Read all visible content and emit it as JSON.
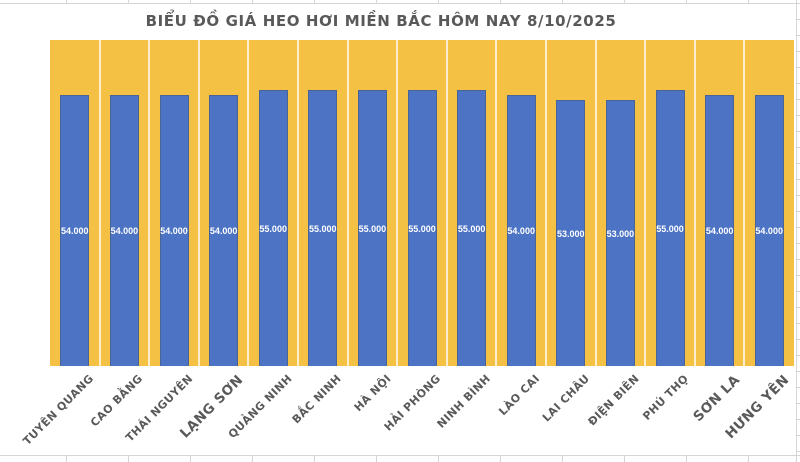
{
  "title": "BIỂU ĐỒ GIÁ HEO HƠI MIỀN BẮC HÔM NAY 8/10/2025",
  "colors": {
    "plot_background": "#F4C145",
    "bar": "#4D74C4",
    "title_text": "#595959",
    "axis_label_text": "#595959",
    "bar_value_text": "#FFFFFF",
    "column_separator": "#FBEBC0",
    "spreadsheet_gridline": "#D6D6D6"
  },
  "chart_data": {
    "type": "bar",
    "title": "BIỂU ĐỒ GIÁ HEO HƠI MIỀN BẮC HÔM NAY 8/10/2025",
    "categories": [
      "TUYÊN QUANG",
      "CAO BẰNG",
      "THÁI NGUYÊN",
      "LẠNG SƠN",
      "QUẢNG NINH",
      "BẮC NINH",
      "HÀ NỘI",
      "HẢI PHÒNG",
      "NINH BÌNH",
      "LÀO CAI",
      "LAI CHÂU",
      "ĐIỆN BIÊN",
      "PHÚ THỌ",
      "SƠN LA",
      "HƯNG YÊN"
    ],
    "values": [
      54000,
      54000,
      54000,
      54000,
      55000,
      55000,
      55000,
      55000,
      55000,
      54000,
      53000,
      53000,
      55000,
      54000,
      54000
    ],
    "value_labels": [
      "54.000",
      "54.000",
      "54.000",
      "54.000",
      "55.000",
      "55.000",
      "55.000",
      "55.000",
      "55.000",
      "54.000",
      "53.000",
      "53.000",
      "55.000",
      "54.000",
      "54.000"
    ],
    "xlabel": "",
    "ylabel": "",
    "ylim": [
      0,
      65000
    ],
    "y_axis_visible": false,
    "legend": "none",
    "data_label_position": "inside-center",
    "x_tick_rotation": -45,
    "grid": "vertical category separators only"
  }
}
